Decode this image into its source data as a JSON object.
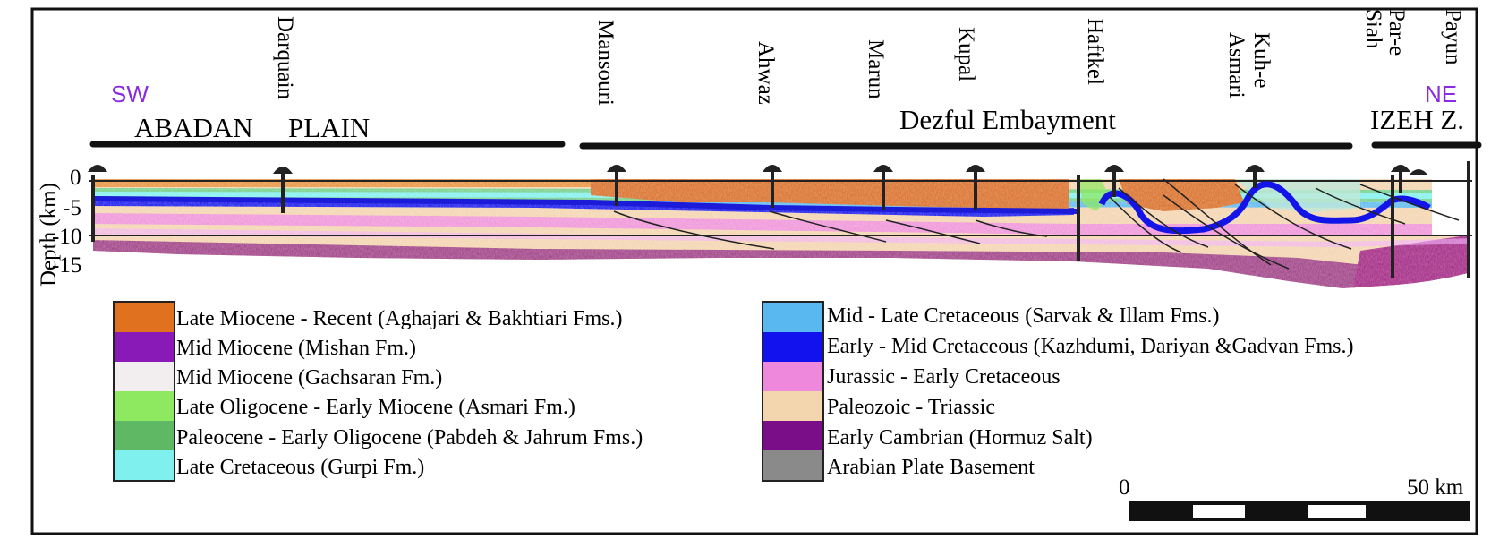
{
  "directions": {
    "sw": "SW",
    "ne": "NE",
    "color": "#8a2be2"
  },
  "regions": [
    {
      "id": "abadan_a",
      "label": "ABADAN"
    },
    {
      "id": "abadan_b",
      "label": "PLAIN"
    },
    {
      "id": "dezful",
      "label": "Dezful Embayment"
    },
    {
      "id": "izeh",
      "label": "IZEH Z."
    }
  ],
  "wells": [
    {
      "name": "Darquain"
    },
    {
      "name": "Mansouri"
    },
    {
      "name": "Ahwaz"
    },
    {
      "name": "Marun"
    },
    {
      "name": "Kupal"
    },
    {
      "name": "Haftkel"
    },
    {
      "name": "Kuh-e"
    },
    {
      "name": "Asmari"
    },
    {
      "name": "Siah"
    },
    {
      "name": "Par-e"
    },
    {
      "name": "Payun"
    }
  ],
  "depth_axis": {
    "label": "Depth (km)",
    "ticks": [
      "0",
      "-5",
      "-10",
      "-15"
    ]
  },
  "legend_left": [
    {
      "label": "Late Miocene - Recent (Aghajari & Bakhtiari Fms.)",
      "color": "#e0711f"
    },
    {
      "label": "Mid Miocene (Mishan Fm.)",
      "color": "#8a1ab8"
    },
    {
      "label": "Mid Miocene (Gachsaran Fm.)",
      "color": "#f2eef0"
    },
    {
      "label": "Late Oligocene - Early Miocene (Asmari Fm.)",
      "color": "#8ee860"
    },
    {
      "label": "Paleocene - Early Oligocene (Pabdeh & Jahrum Fms.)",
      "color": "#5fb864"
    },
    {
      "label": "Late Cretaceous (Gurpi Fm.)",
      "color": "#7ff0ee"
    }
  ],
  "legend_right": [
    {
      "label": "Mid - Late Cretaceous (Sarvak & Illam Fms.)",
      "color": "#5ab8f0"
    },
    {
      "label": "Early - Mid Cretaceous (Kazhdumi, Dariyan &Gadvan Fms.)",
      "color": "#1212ee"
    },
    {
      "label": "Jurassic - Early Cretaceous",
      "color": "#ee88dc"
    },
    {
      "label": "Paleozoic - Triassic",
      "color": "#f4d6ae"
    },
    {
      "label": "Early Cambrian (Hormuz Salt)",
      "color": "#7a0d88"
    },
    {
      "label": "Arabian Plate Basement",
      "color": "#8a8a8a"
    }
  ],
  "scale_bar": {
    "start_label": "0",
    "end_label": "50 km"
  }
}
